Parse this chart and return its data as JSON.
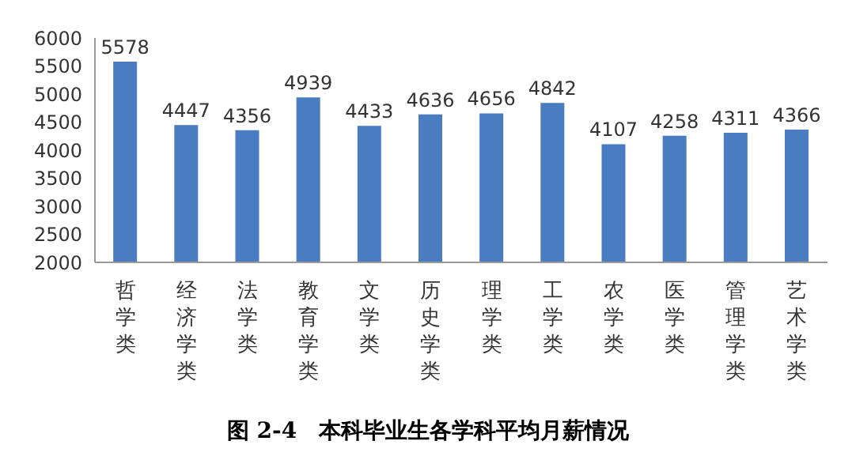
{
  "chart_data": {
    "type": "bar",
    "title": "图 2-4　本科毕业生各学科平均月薪情况",
    "categories": [
      "哲学类",
      "经济学类",
      "法学类",
      "教育学类",
      "文学类",
      "历史学类",
      "理学类",
      "工学类",
      "农学类",
      "医学类",
      "管理学类",
      "艺术学类"
    ],
    "values": [
      5578,
      4447,
      4356,
      4939,
      4433,
      4636,
      4656,
      4842,
      4107,
      4258,
      4311,
      4366
    ],
    "color": "#4a7cc0",
    "ylim": [
      2000,
      6000
    ],
    "yticks": [
      2000,
      2500,
      3000,
      3500,
      4000,
      4500,
      5000,
      5500,
      6000
    ],
    "grid": false,
    "legend": false,
    "data_labels": true
  }
}
